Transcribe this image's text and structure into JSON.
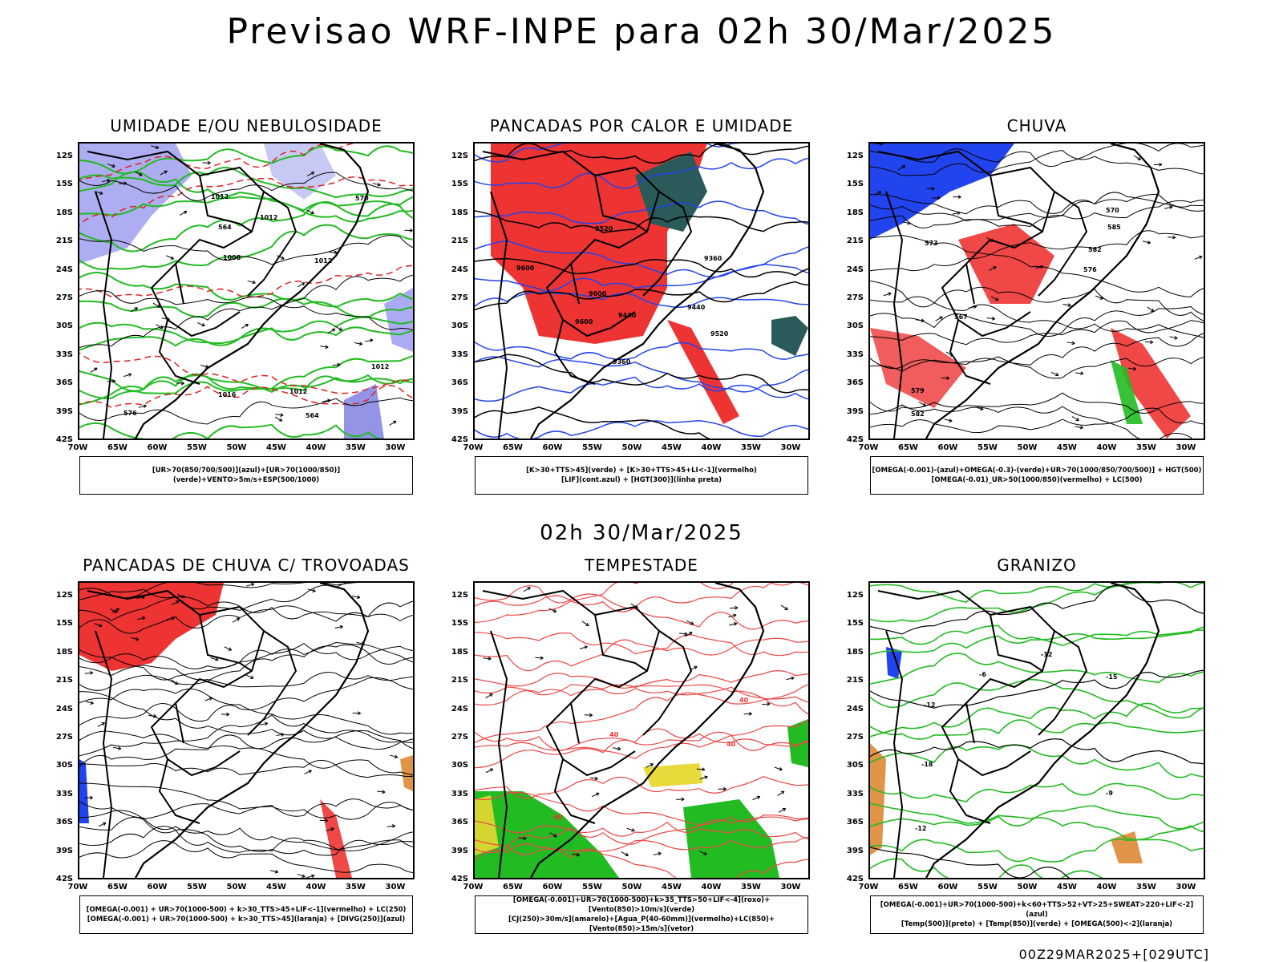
{
  "header": {
    "title": "Previsao WRF-INPE  para 02h 30/Mar/2025"
  },
  "mid_date": "02h 30/Mar/2025",
  "footer": {
    "stamp": "00Z29MAR2025+[029UTC]"
  },
  "axes": {
    "lat_labels": [
      "12S",
      "15S",
      "18S",
      "21S",
      "24S",
      "27S",
      "30S",
      "33S",
      "36S",
      "39S",
      "42S"
    ],
    "lon_labels": [
      "70W",
      "65W",
      "60W",
      "55W",
      "50W",
      "45W",
      "40W",
      "35W",
      "30W"
    ]
  },
  "panels": [
    {
      "title": "UMIDADE E/OU NEBULOSIDADE",
      "legend": [
        "[UR>70(850/700/500)](azul)+[UR>70(1000/850)](verde)+VENTO>5m/s+ESP(500/1000)"
      ],
      "labels": [
        "1012",
        "1012",
        "1012",
        "1008",
        "1016",
        "1012",
        "1012",
        "570",
        "576",
        "564",
        "564"
      ]
    },
    {
      "title": "PANCADAS POR CALOR E UMIDADE",
      "legend": [
        "[K>30+TTS>45](verde) + [K>30+TTS>45+LI<-1](vermelho)",
        "[LIF](cont.azul) + [HGT(300)](linha preta)"
      ],
      "labels": [
        "9600",
        "9600",
        "9600",
        "9520",
        "9520",
        "9440",
        "9440",
        "9360",
        "9360"
      ]
    },
    {
      "title": "CHUVA",
      "legend": [
        "[OMEGA(-0.001)-(azul)+OMEGA(-0.3)-(verde)+UR>70(1000/850/700/500)] + HGT(500)",
        "[OMEGA(-0.01)_UR>50(1000/850)(vermelho) + LC(500)"
      ],
      "labels": [
        "585",
        "582",
        "582",
        "579",
        "576",
        "573",
        "570",
        "567"
      ]
    },
    {
      "title": "PANCADAS DE CHUVA C/ TROVOADAS",
      "legend": [
        "[OMEGA(-0.001) + UR>70(1000-500) + k>30_TTS>45+LIF<-1](vermelho) + LC(250)",
        "[OMEGA(-0.001) + UR>70(1000-500) + k>30_TTS>45](laranja) + [DIVG(250)](azul)"
      ],
      "labels": []
    },
    {
      "title": "TEMPESTADE",
      "legend": [
        "[OMEGA(-0.001)+UR>70(1000-500)+k>35_TTS>50+LIF<-4](roxo)+[Vento(850)>10m/s](verde)",
        "[CJ(250)>30m/s](amarelo)+[Agua_P(40-60mm)](vermelho)+LC(850)+[Vento(850)>15m/s](vetor)"
      ],
      "labels": [
        "40",
        "40",
        "40",
        "40"
      ]
    },
    {
      "title": "GRANIZO",
      "legend": [
        "[OMEGA(-0.001)+UR>70(1000-500)+k<60+TTS>52+VT>25+SWEAT>220+LIF<-2](azul)",
        "[Temp(500)](preto) + [Temp(850)](verde) + [OMEGA(500)<-2](laranja)"
      ],
      "labels": [
        "-12",
        "-12",
        "-12",
        "-9",
        "-6",
        "-15",
        "-18"
      ]
    }
  ]
}
